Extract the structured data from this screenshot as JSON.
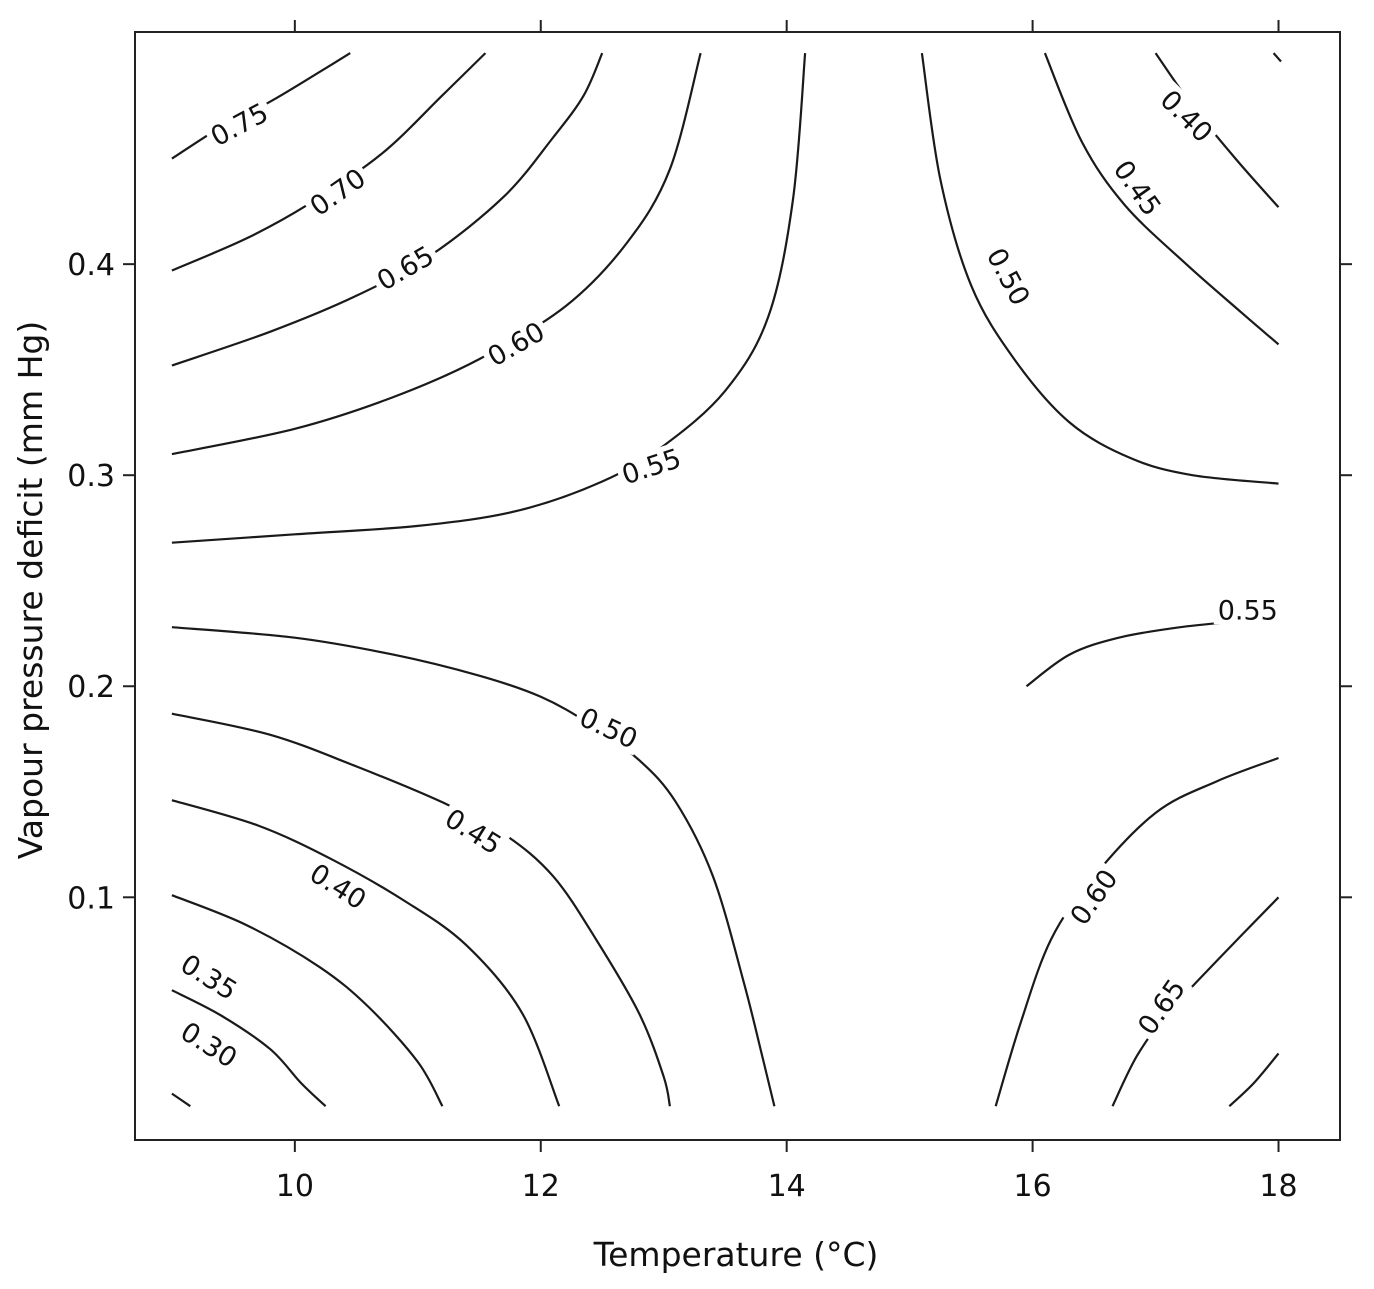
{
  "chart_data": {
    "type": "contour",
    "xlabel": "Temperature (°C)",
    "ylabel": "Vapour pressure deficit (mm Hg)",
    "xlim": [
      8.7,
      18.5
    ],
    "ylim": [
      -0.015,
      0.51
    ],
    "x_ticks": [
      {
        "value": 10,
        "label": "10"
      },
      {
        "value": 12,
        "label": "12"
      },
      {
        "value": 14,
        "label": "14"
      },
      {
        "value": 16,
        "label": "16"
      },
      {
        "value": 18,
        "label": "18"
      }
    ],
    "y_ticks": [
      {
        "value": 0.1,
        "label": "0.1"
      },
      {
        "value": 0.2,
        "label": "0.2"
      },
      {
        "value": 0.3,
        "label": "0.3"
      },
      {
        "value": 0.4,
        "label": "0.4"
      }
    ],
    "contours": [
      {
        "level": "0.75",
        "points": [
          [
            9.0,
            0.45
          ],
          [
            9.4,
            0.465
          ],
          [
            9.8,
            0.477
          ],
          [
            10.2,
            0.491
          ],
          [
            10.45,
            0.5
          ]
        ],
        "label_at": [
          9.55,
          0.466
        ],
        "label_angle": -28
      },
      {
        "level": "0.70",
        "points": [
          [
            9.0,
            0.397
          ],
          [
            9.6,
            0.412
          ],
          [
            10.1,
            0.428
          ],
          [
            10.7,
            0.452
          ],
          [
            11.2,
            0.48
          ],
          [
            11.55,
            0.5
          ]
        ],
        "label_at": [
          10.35,
          0.434
        ],
        "label_angle": -35
      },
      {
        "level": "0.65",
        "points": [
          [
            9.0,
            0.352
          ],
          [
            9.8,
            0.368
          ],
          [
            10.5,
            0.385
          ],
          [
            11.1,
            0.404
          ],
          [
            11.7,
            0.432
          ],
          [
            12.1,
            0.46
          ],
          [
            12.35,
            0.48
          ],
          [
            12.5,
            0.5
          ]
        ],
        "label_at": [
          10.9,
          0.398
        ],
        "label_angle": -30
      },
      {
        "level": "0.60",
        "points": [
          [
            9.0,
            0.31
          ],
          [
            10.0,
            0.322
          ],
          [
            10.8,
            0.337
          ],
          [
            11.5,
            0.355
          ],
          [
            12.2,
            0.38
          ],
          [
            12.7,
            0.41
          ],
          [
            13.05,
            0.445
          ],
          [
            13.3,
            0.5
          ]
        ],
        "label_at": [
          11.8,
          0.362
        ],
        "label_angle": -30
      },
      {
        "level": "0.55",
        "points": [
          [
            9.0,
            0.268
          ],
          [
            10.0,
            0.272
          ],
          [
            11.0,
            0.276
          ],
          [
            11.8,
            0.283
          ],
          [
            12.5,
            0.297
          ],
          [
            13.0,
            0.314
          ],
          [
            13.5,
            0.34
          ],
          [
            13.85,
            0.375
          ],
          [
            14.05,
            0.43
          ],
          [
            14.15,
            0.5
          ]
        ],
        "label_at": [
          12.9,
          0.304
        ],
        "label_angle": -18
      },
      {
        "level": "0.55",
        "points": [
          [
            15.95,
            0.2
          ],
          [
            16.3,
            0.215
          ],
          [
            16.7,
            0.223
          ],
          [
            17.2,
            0.228
          ],
          [
            17.7,
            0.231
          ],
          [
            18.0,
            0.234
          ]
        ],
        "label_at": [
          17.75,
          0.236
        ],
        "label_angle": 0
      },
      {
        "level": "0.50",
        "points": [
          [
            9.0,
            0.228
          ],
          [
            10.0,
            0.223
          ],
          [
            10.8,
            0.215
          ],
          [
            11.5,
            0.205
          ],
          [
            12.0,
            0.195
          ],
          [
            12.4,
            0.182
          ],
          [
            12.8,
            0.165
          ],
          [
            13.1,
            0.145
          ],
          [
            13.4,
            0.11
          ],
          [
            13.65,
            0.06
          ],
          [
            13.8,
            0.025
          ],
          [
            13.9,
            0.001
          ]
        ],
        "label_at": [
          12.55,
          0.18
        ],
        "label_angle": 25
      },
      {
        "level": "0.50",
        "points": [
          [
            15.1,
            0.5
          ],
          [
            15.25,
            0.44
          ],
          [
            15.5,
            0.39
          ],
          [
            15.85,
            0.355
          ],
          [
            16.3,
            0.325
          ],
          [
            16.8,
            0.308
          ],
          [
            17.3,
            0.3
          ],
          [
            18.0,
            0.296
          ]
        ],
        "label_at": [
          15.8,
          0.394
        ],
        "label_angle": 62
      },
      {
        "level": "0.45",
        "points": [
          [
            9.0,
            0.187
          ],
          [
            9.8,
            0.177
          ],
          [
            10.5,
            0.162
          ],
          [
            11.2,
            0.145
          ],
          [
            11.7,
            0.13
          ],
          [
            12.1,
            0.11
          ],
          [
            12.45,
            0.08
          ],
          [
            12.8,
            0.045
          ],
          [
            13.0,
            0.015
          ],
          [
            13.05,
            0.001
          ]
        ],
        "label_at": [
          11.45,
          0.131
        ],
        "label_angle": 32
      },
      {
        "level": "0.45",
        "points": [
          [
            16.1,
            0.5
          ],
          [
            16.4,
            0.458
          ],
          [
            16.75,
            0.428
          ],
          [
            17.25,
            0.4
          ],
          [
            17.7,
            0.377
          ],
          [
            18.0,
            0.362
          ]
        ],
        "label_at": [
          16.85,
          0.436
        ],
        "label_angle": 55
      },
      {
        "level": "0.40",
        "points": [
          [
            9.0,
            0.146
          ],
          [
            9.7,
            0.134
          ],
          [
            10.3,
            0.118
          ],
          [
            10.9,
            0.098
          ],
          [
            11.4,
            0.077
          ],
          [
            11.85,
            0.045
          ],
          [
            12.15,
            0.001
          ]
        ],
        "label_at": [
          10.35,
          0.105
        ],
        "label_angle": 32
      },
      {
        "level": "0.40",
        "points": [
          [
            17.0,
            0.5
          ],
          [
            17.3,
            0.475
          ],
          [
            17.65,
            0.45
          ],
          [
            18.0,
            0.427
          ]
        ],
        "label_at": [
          17.25,
          0.47
        ],
        "label_angle": 45
      },
      {
        "level": "0.35",
        "points": [
          [
            9.0,
            0.101
          ],
          [
            9.6,
            0.087
          ],
          [
            10.2,
            0.067
          ],
          [
            10.6,
            0.048
          ],
          [
            11.0,
            0.022
          ],
          [
            11.2,
            0.001
          ]
        ],
        "label_at": [
          9.3,
          0.062
        ],
        "label_angle": 32
      },
      {
        "level": "0.30",
        "points": [
          [
            9.0,
            0.056
          ],
          [
            9.4,
            0.044
          ],
          [
            9.8,
            0.028
          ],
          [
            10.05,
            0.012
          ],
          [
            10.25,
            0.001
          ]
        ],
        "label_at": [
          9.3,
          0.03
        ],
        "label_angle": 32
      },
      {
        "level": "",
        "points": [
          [
            9.0,
            0.007
          ],
          [
            9.15,
            0.001
          ]
        ],
        "label_at": null,
        "label_angle": 0
      },
      {
        "level": "0.60",
        "points": [
          [
            15.7,
            0.001
          ],
          [
            15.9,
            0.04
          ],
          [
            16.15,
            0.08
          ],
          [
            16.5,
            0.11
          ],
          [
            17.0,
            0.14
          ],
          [
            17.5,
            0.155
          ],
          [
            18.0,
            0.166
          ]
        ],
        "label_at": [
          16.5,
          0.1
        ],
        "label_angle": -55
      },
      {
        "level": "0.65",
        "points": [
          [
            16.65,
            0.001
          ],
          [
            16.85,
            0.025
          ],
          [
            17.1,
            0.045
          ],
          [
            17.5,
            0.07
          ],
          [
            18.0,
            0.1
          ]
        ],
        "label_at": [
          17.05,
          0.048
        ],
        "label_angle": -55
      },
      {
        "level": "",
        "points": [
          [
            17.6,
            0.001
          ],
          [
            17.8,
            0.012
          ],
          [
            18.0,
            0.026
          ]
        ],
        "label_at": null,
        "label_angle": 0
      },
      {
        "level": "",
        "points": [
          [
            17.96,
            0.5
          ],
          [
            18.02,
            0.496
          ]
        ],
        "label_at": null,
        "label_angle": 0
      }
    ]
  }
}
